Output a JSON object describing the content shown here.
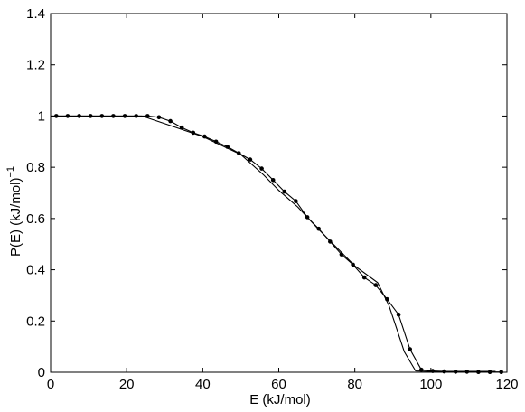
{
  "chart_data": {
    "type": "line",
    "xlabel": "E  (kJ/mol)",
    "ylabel": "P(E)  (kJ/mol)",
    "ylabel_exponent": "−1",
    "xlim": [
      0,
      120
    ],
    "ylim": [
      0,
      1.4
    ],
    "x_ticks": [
      0,
      20,
      40,
      60,
      80,
      100,
      120
    ],
    "y_ticks": [
      0,
      0.2,
      0.4,
      0.6,
      0.8,
      1,
      1.2,
      1.4
    ],
    "x_tick_labels": [
      "0",
      "20",
      "40",
      "60",
      "80",
      "100",
      "120"
    ],
    "y_tick_labels": [
      "0",
      "0.2",
      "0.4",
      "0.6",
      "0.8",
      "1",
      "1.2",
      "1.4"
    ],
    "grid": false,
    "series": [
      {
        "marker": "dot",
        "x": [
          1.5,
          4.5,
          7.5,
          10.5,
          13.5,
          16.5,
          19.5,
          22.5,
          25.5,
          28.5,
          31.5,
          34.5,
          37.5,
          40.5,
          43.5,
          46.5,
          49.5,
          52.5,
          55.5,
          58.5,
          61.5,
          64.5,
          67.5,
          70.5,
          73.5,
          76.5,
          79.5,
          82.5,
          85.5,
          88.5,
          91.5,
          94.5,
          97.5,
          100.5,
          103.5,
          106.5,
          109.5,
          112.5,
          115.5,
          118.5
        ],
        "y": [
          1.0,
          1.0,
          1.0,
          1.0,
          1.0,
          1.0,
          1.0,
          1.0,
          1.0,
          0.995,
          0.98,
          0.955,
          0.935,
          0.92,
          0.9,
          0.88,
          0.855,
          0.83,
          0.795,
          0.75,
          0.705,
          0.668,
          0.605,
          0.56,
          0.51,
          0.46,
          0.42,
          0.37,
          0.34,
          0.285,
          0.225,
          0.09,
          0.01,
          0.005,
          0.003,
          0.002,
          0.002,
          0.001,
          0.001,
          0.001
        ]
      },
      {
        "marker": "none",
        "x": [
          0,
          24,
          30,
          40,
          50,
          56,
          60,
          65,
          70,
          75,
          80,
          86,
          89,
          91,
          93,
          96,
          100,
          117
        ],
        "y": [
          1.0,
          1.0,
          0.97,
          0.92,
          0.85,
          0.77,
          0.71,
          0.645,
          0.565,
          0.49,
          0.415,
          0.35,
          0.26,
          0.17,
          0.08,
          0.005,
          0.003,
          0.003
        ]
      }
    ]
  }
}
